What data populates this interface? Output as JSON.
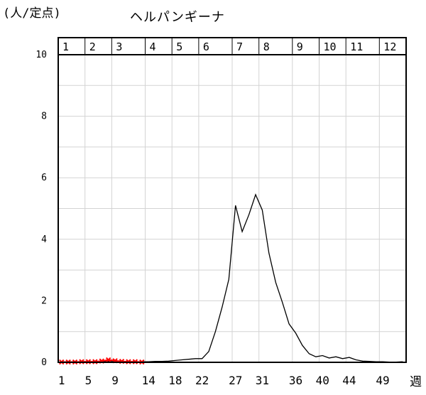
{
  "chart_data": {
    "type": "line",
    "title": "ヘルパンギーナ",
    "ylabel": "(人/定点)",
    "xlabel": "週",
    "ylim": [
      0,
      10
    ],
    "xlim": [
      0.5,
      52.5
    ],
    "yticks": [
      0,
      2,
      4,
      6,
      8,
      10
    ],
    "xticks": [
      1,
      5,
      9,
      14,
      18,
      22,
      27,
      31,
      36,
      40,
      44,
      49
    ],
    "months": [
      "1",
      "2",
      "3",
      "4",
      "5",
      "6",
      "7",
      "8",
      "9",
      "10",
      "11",
      "12"
    ],
    "month_start_weeks": [
      1,
      5,
      9,
      14,
      18,
      22,
      27,
      31,
      36,
      40,
      44,
      49
    ],
    "grid": true,
    "series": [
      {
        "color": "#000000",
        "marker": "none",
        "x": [
          1,
          2,
          3,
          4,
          5,
          6,
          7,
          8,
          9,
          10,
          11,
          12,
          13,
          14,
          15,
          16,
          17,
          18,
          19,
          20,
          21,
          22,
          23,
          24,
          25,
          26,
          27,
          28,
          29,
          30,
          31,
          32,
          33,
          34,
          35,
          36,
          37,
          38,
          39,
          40,
          41,
          42,
          43,
          44,
          45,
          46,
          47,
          48,
          49,
          50,
          51,
          52
        ],
        "values": [
          0.02,
          0.02,
          0.02,
          0.01,
          0.01,
          0.02,
          0.02,
          0.03,
          0.02,
          0.02,
          0.02,
          0.01,
          0.02,
          0.02,
          0.03,
          0.03,
          0.04,
          0.06,
          0.08,
          0.1,
          0.12,
          0.12,
          0.35,
          1.0,
          1.8,
          2.7,
          5.1,
          4.25,
          4.8,
          5.45,
          4.95,
          3.55,
          2.6,
          1.95,
          1.25,
          0.95,
          0.55,
          0.28,
          0.18,
          0.22,
          0.14,
          0.18,
          0.12,
          0.16,
          0.08,
          0.04,
          0.03,
          0.02,
          0.02,
          0.01,
          0.01,
          0.02
        ]
      },
      {
        "color": "#ff0000",
        "marker": "x",
        "x": [
          1,
          2,
          3,
          4,
          5,
          6,
          7,
          8,
          9,
          10,
          11,
          12,
          13
        ],
        "values": [
          0.01,
          0.01,
          0.01,
          0.02,
          0.02,
          0.02,
          0.04,
          0.08,
          0.05,
          0.03,
          0.02,
          0.02,
          0.01
        ]
      }
    ]
  }
}
